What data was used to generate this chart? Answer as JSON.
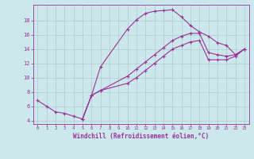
{
  "xlabel": "Windchill (Refroidissement éolien,°C)",
  "background_color": "#cce8ec",
  "grid_color": "#aacccc",
  "line_color": "#993399",
  "xlim": [
    -0.5,
    23.5
  ],
  "ylim": [
    3.5,
    20.2
  ],
  "xticks": [
    0,
    1,
    2,
    3,
    4,
    5,
    6,
    7,
    8,
    9,
    10,
    11,
    12,
    13,
    14,
    15,
    16,
    17,
    18,
    19,
    20,
    21,
    22,
    23
  ],
  "yticks": [
    4,
    6,
    8,
    10,
    12,
    14,
    16,
    18
  ],
  "line1_x": [
    0,
    1,
    2,
    3,
    4,
    5,
    6,
    7,
    10,
    11,
    12,
    13,
    14,
    15,
    16,
    17,
    18,
    19,
    20,
    21,
    22,
    23
  ],
  "line1_y": [
    6.8,
    6.0,
    5.2,
    5.0,
    4.6,
    4.2,
    7.5,
    11.5,
    16.8,
    18.1,
    19.0,
    19.3,
    19.4,
    19.5,
    18.5,
    17.3,
    16.4,
    15.8,
    14.9,
    14.5,
    13.2,
    14.0
  ],
  "line2_x": [
    5,
    6,
    7,
    10,
    11,
    12,
    13,
    14,
    15,
    16,
    17,
    18,
    19,
    20,
    21,
    22,
    23
  ],
  "line2_y": [
    4.2,
    7.5,
    8.2,
    10.2,
    11.2,
    12.2,
    13.2,
    14.2,
    15.2,
    15.8,
    16.2,
    16.2,
    13.5,
    13.2,
    13.0,
    13.2,
    14.0
  ],
  "line3_x": [
    5,
    6,
    7,
    10,
    11,
    12,
    13,
    14,
    15,
    16,
    17,
    18,
    19,
    20,
    21,
    22,
    23
  ],
  "line3_y": [
    4.2,
    7.5,
    8.2,
    9.2,
    10.0,
    11.0,
    12.0,
    13.0,
    14.0,
    14.5,
    15.0,
    15.2,
    12.5,
    12.5,
    12.5,
    13.0,
    14.0
  ]
}
